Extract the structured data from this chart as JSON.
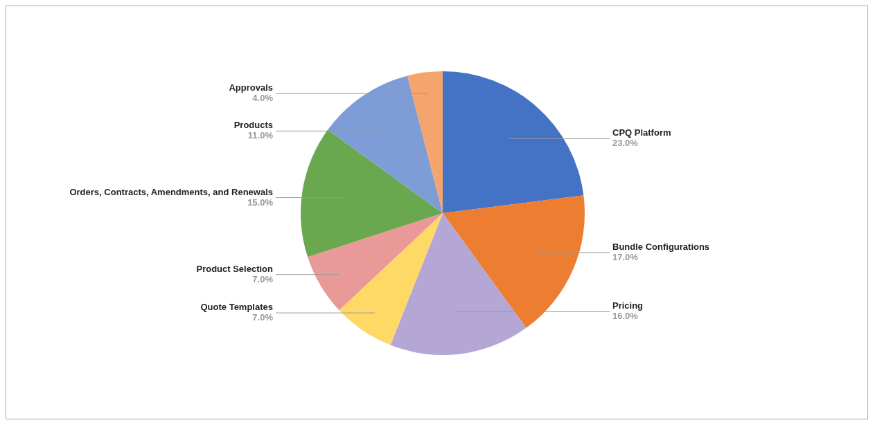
{
  "chart_data": {
    "type": "pie",
    "categories": [
      "CPQ Platform",
      "Bundle Configurations",
      "Pricing",
      "Quote Templates",
      "Product Selection",
      "Orders, Contracts, Amendments, and Renewals",
      "Products",
      "Approvals"
    ],
    "values": [
      23,
      17,
      16,
      7,
      7,
      15,
      11,
      4
    ],
    "value_labels": [
      "23.0%",
      "17.0%",
      "16.0%",
      "7.0%",
      "7.0%",
      "15.0%",
      "11.0%",
      "4.0%"
    ],
    "colors": [
      "#4472c4",
      "#ed7d31",
      "#b4a7d6",
      "#ffd966",
      "#ea9999",
      "#6aa84f",
      "#7e9cd6",
      "#f4a46c"
    ]
  }
}
